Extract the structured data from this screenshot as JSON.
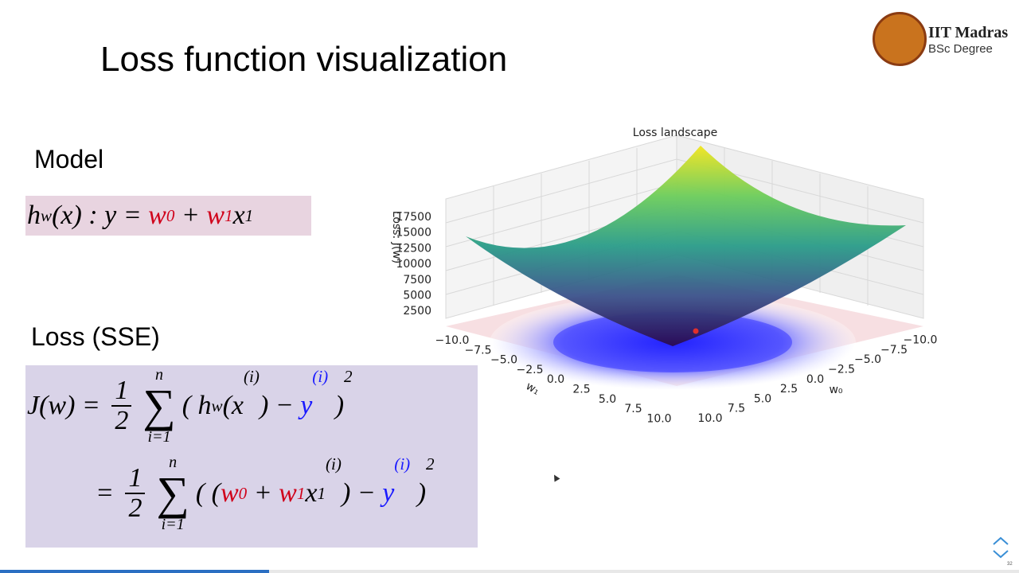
{
  "title": "Loss function visualization",
  "logo": {
    "name": "IIT Madras",
    "sub": "BSc Degree"
  },
  "model": {
    "label": "Model",
    "formula": [
      {
        "t": "h"
      },
      {
        "sub": "w"
      },
      {
        "t": "(x) : y = "
      },
      {
        "t": "w",
        "c": "#d0021b"
      },
      {
        "sub": "0",
        "c": "#d0021b"
      },
      {
        "t": " + "
      },
      {
        "t": "w",
        "c": "#d0021b"
      },
      {
        "sub": "1",
        "c": "#d0021b"
      },
      {
        "t": "x"
      },
      {
        "sub": "1"
      }
    ]
  },
  "loss": {
    "label": "Loss (SSE)",
    "lines": [
      [
        {
          "t": "J(w) = "
        },
        {
          "num": "1",
          "den": "2"
        },
        {
          "sym": "∑",
          "over": "n",
          "under": "i=1"
        },
        {
          "t": "( h"
        },
        {
          "sub": "w"
        },
        {
          "t": "(x"
        },
        {
          "sup": "(i)"
        },
        {
          "t": ") − "
        },
        {
          "t": "y",
          "c": "#1a1aff"
        },
        {
          "sup": "(i)",
          "c": "#1a1aff"
        },
        {
          "t": " )"
        },
        {
          "sup": "2"
        }
      ],
      [
        {
          "t": "= "
        },
        {
          "num": "1",
          "den": "2"
        },
        {
          "sym": "∑",
          "over": "n",
          "under": "i=1"
        },
        {
          "t": "( ("
        },
        {
          "t": "w",
          "c": "#d0021b"
        },
        {
          "sub": "0",
          "c": "#d0021b"
        },
        {
          "t": " + "
        },
        {
          "t": "w",
          "c": "#d0021b"
        },
        {
          "sub": "1",
          "c": "#d0021b"
        },
        {
          "t": "x"
        },
        {
          "sub": "1"
        },
        {
          "sup": "(i)"
        },
        {
          "t": ") − "
        },
        {
          "t": "y",
          "c": "#1a1aff"
        },
        {
          "sup": "(i)",
          "c": "#1a1aff"
        },
        {
          "t": " )"
        },
        {
          "sup": "2"
        }
      ]
    ]
  },
  "plot": {
    "title": "Loss landscape",
    "zlabel": "Loss: J(w)",
    "xlabel": "w₁",
    "ylabel": "w₀",
    "zticks": [
      "17500",
      "15000",
      "12500",
      "10000",
      "7500",
      "5000",
      "2500"
    ],
    "xticks": [
      "−10.0",
      "−7.5",
      "−5.0",
      "−2.5",
      "0.0",
      "2.5",
      "5.0",
      "7.5",
      "10.0"
    ],
    "yticks": [
      "10.0",
      "7.5",
      "5.0",
      "2.5",
      "0.0",
      "−2.5",
      "−5.0",
      "−7.5",
      "−10.0"
    ]
  },
  "page_number": "32"
}
